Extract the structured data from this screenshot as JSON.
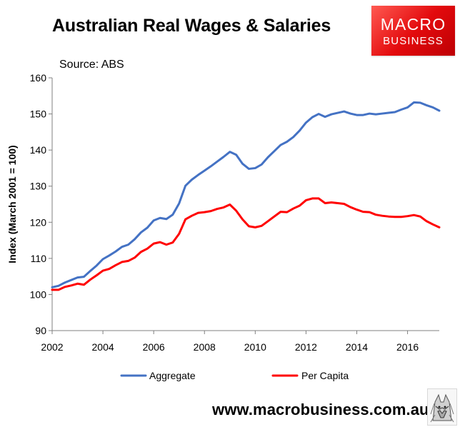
{
  "title": "Australian Real Wages & Salaries",
  "source": "Source: ABS",
  "brand": {
    "name": "MACRO",
    "sub": "BUSINESS"
  },
  "website": "www.macrobusiness.com.au",
  "colors": {
    "aggregate": "#4472c4",
    "per_capita": "#ff0000",
    "brand": "#e30a0d"
  },
  "chart_data": {
    "type": "line",
    "title": "Australian Real Wages & Salaries",
    "subtitle": "Source: ABS",
    "xlabel": "",
    "ylabel": "Index (March 2001 = 100)",
    "xlim": [
      2002,
      2017.25
    ],
    "ylim": [
      90,
      160
    ],
    "xticks": [
      2002,
      2004,
      2006,
      2008,
      2010,
      2012,
      2014,
      2016
    ],
    "xtick_labels": [
      "2002",
      "2004",
      "2006",
      "2008",
      "2010",
      "2012",
      "2014",
      "2016"
    ],
    "yticks": [
      90,
      100,
      110,
      120,
      130,
      140,
      150,
      160
    ],
    "ytick_labels": [
      "90",
      "100",
      "110",
      "120",
      "130",
      "140",
      "150",
      "160"
    ],
    "grid": false,
    "legend_position": "bottom",
    "series": [
      {
        "name": "Aggregate",
        "color": "#4472c4",
        "points": [
          [
            2002.0,
            102.0
          ],
          [
            2002.25,
            102.4
          ],
          [
            2002.5,
            103.3
          ],
          [
            2002.75,
            104.0
          ],
          [
            2003.0,
            104.7
          ],
          [
            2003.25,
            104.9
          ],
          [
            2003.5,
            106.5
          ],
          [
            2003.75,
            108.0
          ],
          [
            2004.0,
            109.8
          ],
          [
            2004.25,
            110.8
          ],
          [
            2004.5,
            111.9
          ],
          [
            2004.75,
            113.2
          ],
          [
            2005.0,
            113.8
          ],
          [
            2005.25,
            115.3
          ],
          [
            2005.5,
            117.2
          ],
          [
            2005.75,
            118.5
          ],
          [
            2006.0,
            120.5
          ],
          [
            2006.25,
            121.2
          ],
          [
            2006.5,
            120.9
          ],
          [
            2006.75,
            122.1
          ],
          [
            2007.0,
            125.2
          ],
          [
            2007.25,
            130.1
          ],
          [
            2007.5,
            131.8
          ],
          [
            2007.75,
            133.1
          ],
          [
            2008.0,
            134.3
          ],
          [
            2008.25,
            135.5
          ],
          [
            2008.5,
            136.8
          ],
          [
            2008.75,
            138.1
          ],
          [
            2009.0,
            139.5
          ],
          [
            2009.25,
            138.7
          ],
          [
            2009.5,
            136.2
          ],
          [
            2009.75,
            134.8
          ],
          [
            2010.0,
            135.0
          ],
          [
            2010.25,
            136.0
          ],
          [
            2010.5,
            138.0
          ],
          [
            2010.75,
            139.7
          ],
          [
            2011.0,
            141.4
          ],
          [
            2011.25,
            142.3
          ],
          [
            2011.5,
            143.6
          ],
          [
            2011.75,
            145.4
          ],
          [
            2012.0,
            147.6
          ],
          [
            2012.25,
            149.1
          ],
          [
            2012.5,
            150.0
          ],
          [
            2012.75,
            149.2
          ],
          [
            2013.0,
            149.9
          ],
          [
            2013.25,
            150.3
          ],
          [
            2013.5,
            150.7
          ],
          [
            2013.75,
            150.1
          ],
          [
            2014.0,
            149.7
          ],
          [
            2014.25,
            149.7
          ],
          [
            2014.5,
            150.1
          ],
          [
            2014.75,
            149.9
          ],
          [
            2015.0,
            150.1
          ],
          [
            2015.25,
            150.3
          ],
          [
            2015.5,
            150.5
          ],
          [
            2015.75,
            151.2
          ],
          [
            2016.0,
            151.8
          ],
          [
            2016.25,
            153.2
          ],
          [
            2016.5,
            153.1
          ],
          [
            2016.75,
            152.4
          ],
          [
            2017.0,
            151.8
          ],
          [
            2017.25,
            150.9
          ]
        ]
      },
      {
        "name": "Per Capita",
        "color": "#ff0000",
        "points": [
          [
            2002.0,
            101.3
          ],
          [
            2002.25,
            101.3
          ],
          [
            2002.5,
            102.1
          ],
          [
            2002.75,
            102.5
          ],
          [
            2003.0,
            103.0
          ],
          [
            2003.25,
            102.7
          ],
          [
            2003.5,
            104.1
          ],
          [
            2003.75,
            105.3
          ],
          [
            2004.0,
            106.6
          ],
          [
            2004.25,
            107.1
          ],
          [
            2004.5,
            108.1
          ],
          [
            2004.75,
            109.0
          ],
          [
            2005.0,
            109.3
          ],
          [
            2005.25,
            110.2
          ],
          [
            2005.5,
            111.8
          ],
          [
            2005.75,
            112.7
          ],
          [
            2006.0,
            114.1
          ],
          [
            2006.25,
            114.5
          ],
          [
            2006.5,
            113.8
          ],
          [
            2006.75,
            114.4
          ],
          [
            2007.0,
            116.8
          ],
          [
            2007.25,
            120.8
          ],
          [
            2007.5,
            121.8
          ],
          [
            2007.75,
            122.6
          ],
          [
            2008.0,
            122.8
          ],
          [
            2008.25,
            123.1
          ],
          [
            2008.5,
            123.7
          ],
          [
            2008.75,
            124.1
          ],
          [
            2009.0,
            124.9
          ],
          [
            2009.25,
            123.2
          ],
          [
            2009.5,
            120.8
          ],
          [
            2009.75,
            118.9
          ],
          [
            2010.0,
            118.6
          ],
          [
            2010.25,
            119.0
          ],
          [
            2010.5,
            120.3
          ],
          [
            2010.75,
            121.6
          ],
          [
            2011.0,
            122.9
          ],
          [
            2011.25,
            122.8
          ],
          [
            2011.5,
            123.8
          ],
          [
            2011.75,
            124.6
          ],
          [
            2012.0,
            126.1
          ],
          [
            2012.25,
            126.6
          ],
          [
            2012.5,
            126.6
          ],
          [
            2012.75,
            125.3
          ],
          [
            2013.0,
            125.5
          ],
          [
            2013.25,
            125.3
          ],
          [
            2013.5,
            125.1
          ],
          [
            2013.75,
            124.2
          ],
          [
            2014.0,
            123.5
          ],
          [
            2014.25,
            122.9
          ],
          [
            2014.5,
            122.8
          ],
          [
            2014.75,
            122.1
          ],
          [
            2015.0,
            121.8
          ],
          [
            2015.25,
            121.6
          ],
          [
            2015.5,
            121.5
          ],
          [
            2015.75,
            121.5
          ],
          [
            2016.0,
            121.7
          ],
          [
            2016.25,
            122.0
          ],
          [
            2016.5,
            121.6
          ],
          [
            2016.75,
            120.3
          ],
          [
            2017.0,
            119.4
          ],
          [
            2017.25,
            118.6
          ]
        ]
      }
    ]
  }
}
